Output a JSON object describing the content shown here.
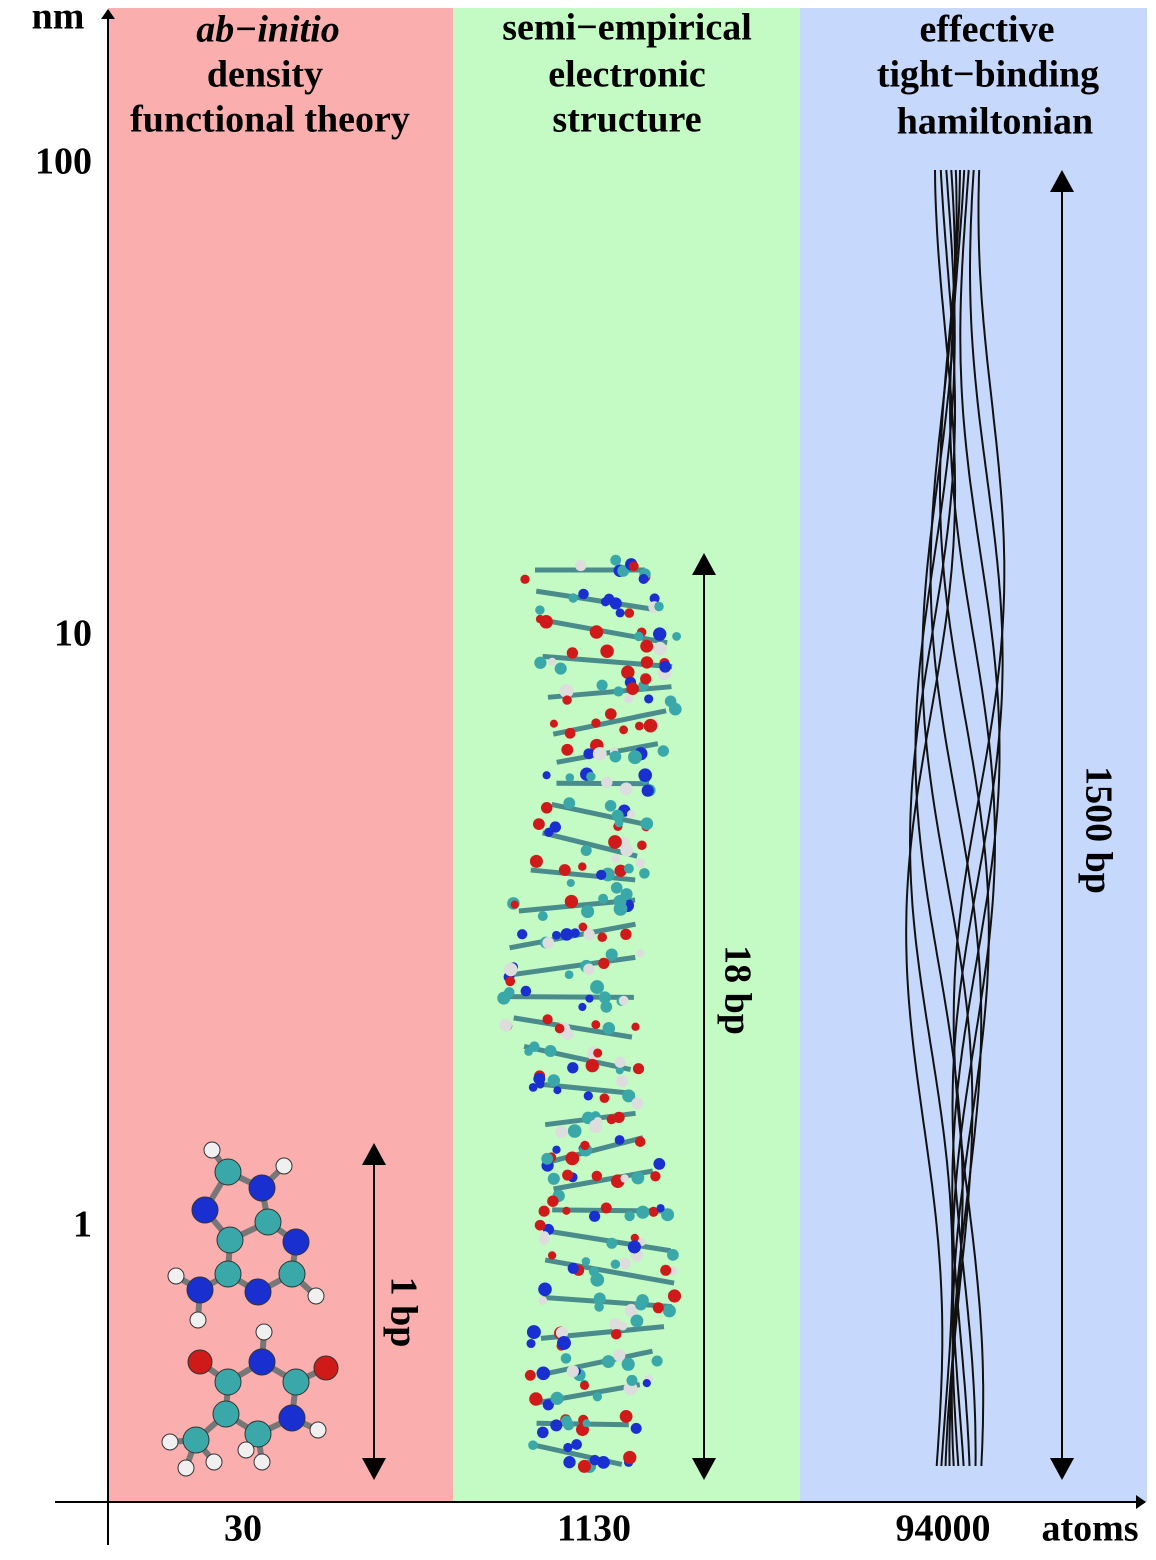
{
  "axes": {
    "y_label": "nm",
    "x_label": "atoms",
    "y_ticks": [
      "100",
      "10",
      "1"
    ]
  },
  "panels": [
    {
      "title_lines": [
        "ab−initio",
        "density",
        "functional theory"
      ],
      "atoms": "30",
      "length": "1 bp"
    },
    {
      "title_lines": [
        "semi−empirical",
        "electronic",
        "structure"
      ],
      "atoms": "1130",
      "length": "18 bp"
    },
    {
      "title_lines": [
        "effective",
        "tight−binding",
        "hamiltonian"
      ],
      "atoms": "94000",
      "length": "1500 bp"
    }
  ]
}
